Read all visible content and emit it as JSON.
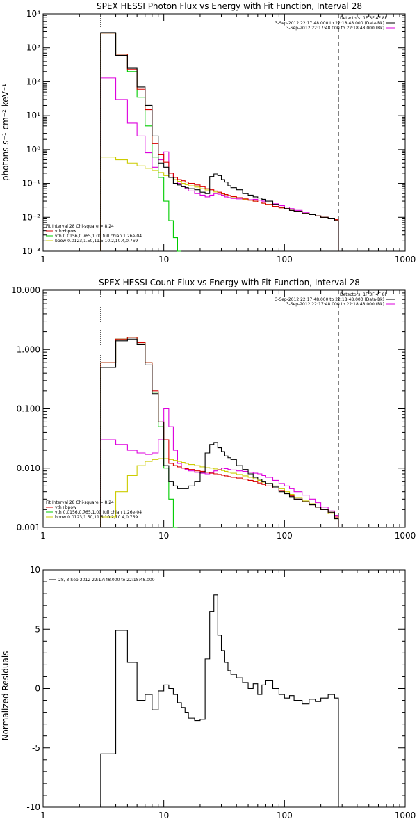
{
  "colors": {
    "total": "#000000",
    "sum": "#d80000",
    "vth": "#00cc00",
    "bpow": "#cccc00",
    "background": "#dd00dd"
  },
  "chart_data": [
    {
      "type": "line",
      "title": "SPEX HESSI Photon Flux vs Energy with Fit Function, Interval 28",
      "xlabel": "",
      "ylabel": "photons s⁻¹ cm⁻² keV⁻¹",
      "xscale": "log",
      "yscale": "log",
      "xlim": [
        1,
        1000
      ],
      "ylim": [
        0.001,
        10000
      ],
      "xticks": [
        {
          "v": 1,
          "label": "1"
        },
        {
          "v": 10,
          "label": "10"
        },
        {
          "v": 100,
          "label": "100"
        },
        {
          "v": 1000,
          "label": "1000"
        }
      ],
      "yticks": [
        {
          "v": 0.001,
          "label": "10⁻³"
        },
        {
          "v": 0.01,
          "label": "10⁻²"
        },
        {
          "v": 0.1,
          "label": "10⁻¹"
        },
        {
          "v": 1,
          "label": "10⁰"
        },
        {
          "v": 10,
          "label": "10¹"
        },
        {
          "v": 100,
          "label": "10²"
        },
        {
          "v": 1000,
          "label": "10³"
        },
        {
          "v": 10000,
          "label": "10⁴"
        }
      ],
      "vlines": [
        {
          "x": 3,
          "style": "dotted"
        },
        {
          "x": 280,
          "style": "dashed"
        }
      ],
      "legend_top_right": [
        "Detectors: 1F 3F 4F 8F",
        "3-Sep-2012 22:17:48.000 to 22:18:48.000 (Data-Bk)",
        "3-Sep-2012 22:17:48.000 to 22:18:48.000 (Bk)"
      ],
      "legend_bottom_left": [
        "Fit Interval 28   Chi-square = 8.24",
        "vth+bpow",
        "vth 0.0156,0.765,1.00  full chian 1.26e-04",
        "bpow 0.0123,1.50,11.5,10.2,10.4,0.769"
      ],
      "edges": [
        3,
        4,
        5,
        6,
        7,
        8,
        9,
        10,
        11,
        12,
        13,
        14,
        15,
        16,
        18,
        20,
        22,
        24,
        26,
        28,
        30,
        32,
        34,
        36,
        40,
        45,
        50,
        55,
        60,
        65,
        70,
        80,
        90,
        100,
        110,
        120,
        140,
        160,
        180,
        200,
        230,
        260,
        280
      ],
      "series": [
        {
          "key": "total",
          "color_key": "total",
          "values": [
            2800,
            600,
            250,
            70,
            20,
            2.5,
            0.4,
            0.3,
            0.15,
            0.1,
            0.09,
            0.08,
            0.075,
            0.07,
            0.065,
            0.055,
            0.05,
            0.16,
            0.19,
            0.17,
            0.13,
            0.11,
            0.085,
            0.075,
            0.065,
            0.05,
            0.045,
            0.04,
            0.037,
            0.034,
            0.03,
            0.024,
            0.02,
            0.018,
            0.016,
            0.015,
            0.013,
            0.012,
            0.011,
            0.01,
            0.009,
            0.008
          ]
        },
        {
          "key": "sum",
          "color_key": "sum",
          "values": [
            2700,
            650,
            230,
            60,
            15,
            1.5,
            0.7,
            0.42,
            0.2,
            0.15,
            0.13,
            0.12,
            0.11,
            0.1,
            0.09,
            0.08,
            0.07,
            0.065,
            0.06,
            0.055,
            0.05,
            0.047,
            0.044,
            0.041,
            0.038,
            0.035,
            0.032,
            0.03,
            0.028,
            0.026,
            0.024,
            0.021,
            0.019,
            0.018,
            0.016,
            0.015,
            0.013,
            0.012,
            0.011,
            0.01,
            0.009,
            0.0085
          ]
        },
        {
          "key": "vth",
          "color_key": "vth",
          "values": [
            2700,
            650,
            200,
            35,
            5,
            0.6,
            0.15,
            0.03,
            0.008,
            0.0025,
            0.0008
          ]
        },
        {
          "key": "bpow",
          "color_key": "bpow",
          "values": [
            0.6,
            0.5,
            0.4,
            0.33,
            0.28,
            0.24,
            0.21,
            0.17,
            0.15,
            0.13,
            0.115,
            0.1,
            0.092,
            0.085,
            0.078,
            0.07,
            0.064,
            0.06,
            0.056,
            0.052,
            0.049,
            0.046,
            0.043,
            0.04,
            0.037,
            0.034,
            0.032,
            0.03,
            0.028,
            0.026,
            0.024,
            0.021,
            0.019,
            0.018,
            0.016,
            0.015,
            0.013,
            0.012,
            0.011,
            0.01,
            0.009,
            0.0085
          ]
        },
        {
          "key": "background",
          "color_key": "background",
          "values": [
            130,
            30,
            6,
            2.5,
            0.8,
            0.3,
            0.5,
            0.85,
            0.2,
            0.15,
            0.1,
            0.08,
            0.07,
            0.06,
            0.05,
            0.045,
            0.04,
            0.045,
            0.05,
            0.048,
            0.045,
            0.04,
            0.038,
            0.036,
            0.035,
            0.034,
            0.033,
            0.034,
            0.032,
            0.03,
            0.028,
            0.025,
            0.022,
            0.02,
            0.018,
            0.016,
            0.014,
            0.012,
            0.011,
            0.01,
            0.009,
            0.0085
          ]
        }
      ]
    },
    {
      "type": "line",
      "title": "SPEX HESSI Count Flux vs Energy with Fit Function, Interval 28",
      "xlabel": "",
      "ylabel": "",
      "xscale": "log",
      "yscale": "log",
      "xlim": [
        1,
        1000
      ],
      "ylim": [
        0.001,
        10
      ],
      "xticks": [
        {
          "v": 1,
          "label": "1"
        },
        {
          "v": 10,
          "label": "10"
        },
        {
          "v": 100,
          "label": "100"
        },
        {
          "v": 1000,
          "label": "1000"
        }
      ],
      "yticks": [
        {
          "v": 0.001,
          "label": "0.001"
        },
        {
          "v": 0.01,
          "label": "0.010"
        },
        {
          "v": 0.1,
          "label": "0.100"
        },
        {
          "v": 1,
          "label": "1.000"
        },
        {
          "v": 10,
          "label": "10.000"
        }
      ],
      "vlines": [
        {
          "x": 3,
          "style": "dotted"
        },
        {
          "x": 280,
          "style": "dashed"
        }
      ],
      "legend_top_right": [
        "Detectors: 1F 3F 4F 8F",
        "3-Sep-2012 22:17:48.000 to 22:18:48.000 (Data-Bk)",
        "3-Sep-2012 22:17:48.000 to 22:18:48.000 (Bk)"
      ],
      "legend_bottom_left": [
        "Fit Interval 28   Chi-square = 8.24",
        "vth+bpow",
        "vth 0.0156,0.765,1.00  full chian 1.26e-04",
        "bpow 0.0123,1.50,11.5,10.2,10.4,0.769"
      ],
      "edges": [
        3,
        4,
        5,
        6,
        7,
        8,
        9,
        10,
        11,
        12,
        13,
        14,
        15,
        16,
        18,
        20,
        22,
        24,
        26,
        28,
        30,
        32,
        34,
        36,
        40,
        45,
        50,
        55,
        60,
        65,
        70,
        80,
        90,
        100,
        110,
        120,
        140,
        160,
        180,
        200,
        230,
        260,
        280
      ],
      "series": [
        {
          "key": "total",
          "color_key": "total",
          "values": [
            0.5,
            1.4,
            1.5,
            1.2,
            0.55,
            0.18,
            0.06,
            0.011,
            0.006,
            0.005,
            0.0045,
            0.0045,
            0.0045,
            0.005,
            0.006,
            0.0085,
            0.018,
            0.025,
            0.027,
            0.022,
            0.019,
            0.016,
            0.015,
            0.014,
            0.011,
            0.0095,
            0.008,
            0.007,
            0.0065,
            0.006,
            0.0055,
            0.0048,
            0.004,
            0.0037,
            0.0033,
            0.003,
            0.0027,
            0.0024,
            0.0022,
            0.002,
            0.0018,
            0.0014
          ]
        },
        {
          "key": "sum",
          "color_key": "sum",
          "values": [
            0.6,
            1.5,
            1.6,
            1.3,
            0.6,
            0.2,
            0.06,
            0.03,
            0.012,
            0.011,
            0.0105,
            0.01,
            0.0098,
            0.0095,
            0.009,
            0.0088,
            0.0085,
            0.0082,
            0.008,
            0.0078,
            0.0076,
            0.0074,
            0.0072,
            0.007,
            0.0068,
            0.0065,
            0.0062,
            0.006,
            0.0056,
            0.0053,
            0.005,
            0.0046,
            0.0042,
            0.0038,
            0.0034,
            0.003,
            0.0027,
            0.0024,
            0.0022,
            0.002,
            0.0018,
            0.0015
          ]
        },
        {
          "key": "vth",
          "color_key": "vth",
          "values": [
            0.6,
            1.5,
            1.6,
            1.3,
            0.6,
            0.19,
            0.05,
            0.01,
            0.003,
            0.0008
          ]
        },
        {
          "key": "bpow",
          "color_key": "bpow",
          "values": [
            0.0015,
            0.004,
            0.0075,
            0.011,
            0.013,
            0.014,
            0.0145,
            0.0145,
            0.014,
            0.0135,
            0.013,
            0.0125,
            0.012,
            0.0115,
            0.011,
            0.0105,
            0.0102,
            0.01,
            0.0097,
            0.0094,
            0.0091,
            0.0088,
            0.0085,
            0.0082,
            0.0078,
            0.0074,
            0.007,
            0.0066,
            0.0062,
            0.0058,
            0.0055,
            0.005,
            0.0045,
            0.004,
            0.0036,
            0.0032,
            0.0028,
            0.0025,
            0.0022,
            0.002,
            0.0017,
            0.0014
          ]
        },
        {
          "key": "background",
          "color_key": "background",
          "values": [
            0.03,
            0.025,
            0.02,
            0.018,
            0.017,
            0.018,
            0.03,
            0.1,
            0.05,
            0.02,
            0.012,
            0.01,
            0.0095,
            0.009,
            0.0085,
            0.0082,
            0.008,
            0.0085,
            0.009,
            0.0095,
            0.01,
            0.0098,
            0.0095,
            0.0093,
            0.009,
            0.0088,
            0.0085,
            0.0082,
            0.008,
            0.0075,
            0.007,
            0.0062,
            0.0055,
            0.005,
            0.0045,
            0.004,
            0.0035,
            0.003,
            0.0026,
            0.0022,
            0.0019,
            0.0016
          ]
        }
      ]
    },
    {
      "type": "line",
      "title": "",
      "xlabel": "",
      "ylabel": "Normalized Residuals",
      "xscale": "log",
      "yscale": "linear",
      "xlim": [
        1,
        1000
      ],
      "ylim": [
        -10,
        10
      ],
      "xticks": [
        {
          "v": 1,
          "label": "1"
        },
        {
          "v": 10,
          "label": "10"
        },
        {
          "v": 100,
          "label": "100"
        },
        {
          "v": 1000,
          "label": "1000"
        }
      ],
      "yticks": [
        {
          "v": -10,
          "label": "-10"
        },
        {
          "v": -5,
          "label": "-5"
        },
        {
          "v": 0,
          "label": "0"
        },
        {
          "v": 5,
          "label": "5"
        },
        {
          "v": 10,
          "label": "10"
        }
      ],
      "legend_top_left": [
        "28,  3-Sep-2012 22:17:48.000 to 22:18:48.000"
      ],
      "edges": [
        3,
        4,
        5,
        6,
        7,
        8,
        9,
        10,
        11,
        12,
        13,
        14,
        15,
        16,
        18,
        20,
        22,
        24,
        26,
        28,
        30,
        32,
        34,
        36,
        40,
        45,
        50,
        55,
        60,
        65,
        70,
        80,
        90,
        100,
        110,
        120,
        140,
        160,
        180,
        200,
        230,
        260,
        280
      ],
      "series": [
        {
          "key": "residuals",
          "color_key": "total",
          "values": [
            -5.5,
            4.9,
            2.2,
            -1.0,
            -0.5,
            -1.8,
            -0.2,
            0.3,
            0.0,
            -0.5,
            -1.2,
            -1.6,
            -2.0,
            -2.5,
            -2.7,
            -2.6,
            2.5,
            6.5,
            7.9,
            4.5,
            3.2,
            2.2,
            1.5,
            1.2,
            0.9,
            0.5,
            0.0,
            0.4,
            -0.5,
            0.3,
            0.7,
            0.0,
            -0.5,
            -0.8,
            -0.6,
            -1.0,
            -1.3,
            -0.9,
            -1.1,
            -0.8,
            -0.5,
            -0.8
          ]
        }
      ]
    }
  ]
}
